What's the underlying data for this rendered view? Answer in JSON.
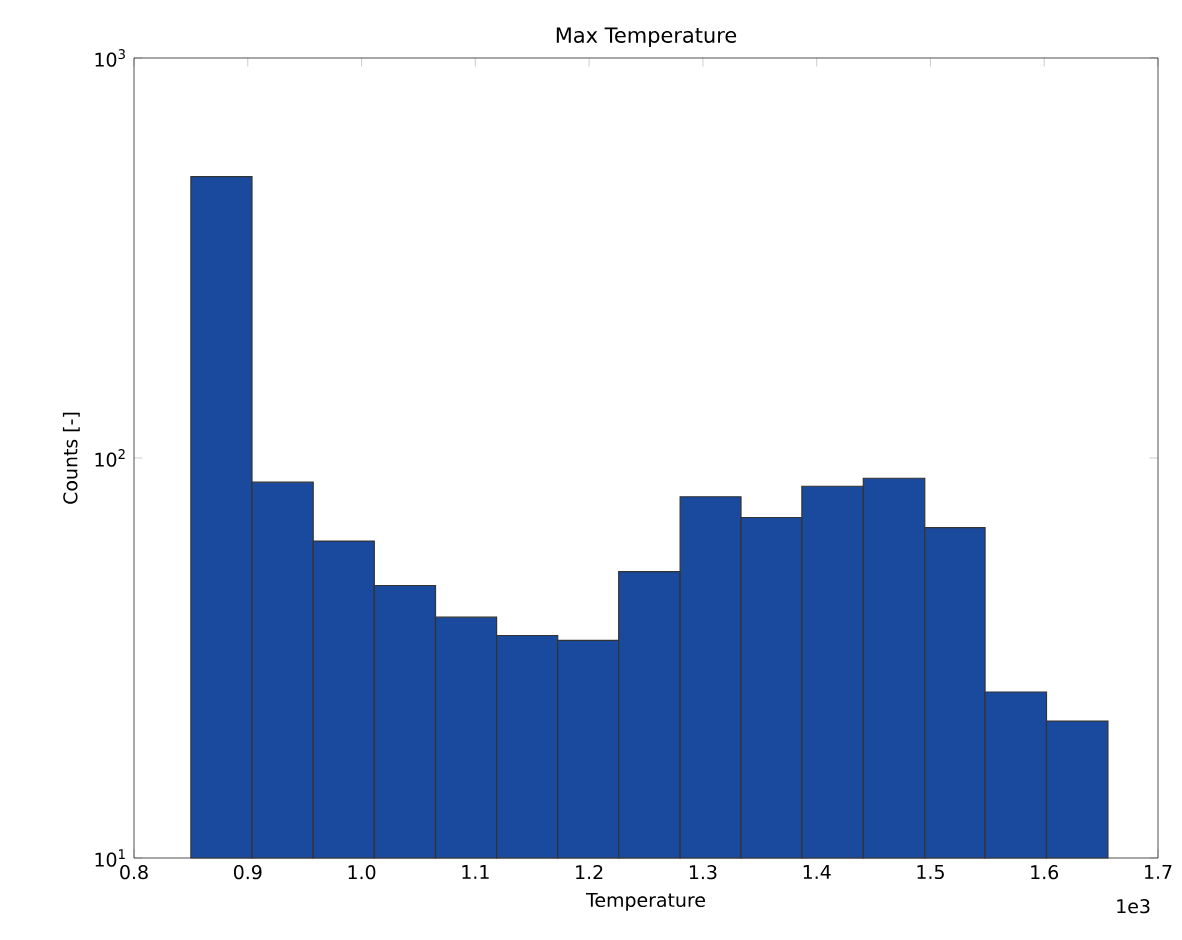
{
  "chart_data": {
    "type": "histogram",
    "title": "Max Temperature",
    "xlabel": "Temperature",
    "ylabel": "Counts [-]",
    "annotations": [
      "1e3"
    ],
    "bins": [
      0.85,
      0.9037,
      0.9575,
      1.0112,
      1.065,
      1.1187,
      1.1724,
      1.226,
      1.28,
      1.3335,
      1.387,
      1.441,
      1.495,
      1.548,
      1.602,
      1.656
    ],
    "values": [
      505,
      87,
      62,
      48,
      40,
      36,
      35,
      52,
      80,
      71,
      85,
      89,
      67,
      26,
      22
    ],
    "color": "#1a4a9e",
    "log": "y",
    "grid": false,
    "xlim": [
      0.8,
      1.7
    ],
    "xticks": [
      0.8,
      0.9,
      {
        "value": 1,
        "label": "1.0"
      },
      1.1,
      1.2,
      1.3,
      1.4,
      1.5,
      1.6,
      1.7
    ],
    "ylim": [
      10,
      1000
    ],
    "yticks": [
      {
        "value": 10,
        "label": "10$^{1}$"
      },
      {
        "value": 100,
        "label": "10$^{2}$"
      },
      {
        "value": 1000,
        "label": "10$^{3}$"
      }
    ]
  }
}
